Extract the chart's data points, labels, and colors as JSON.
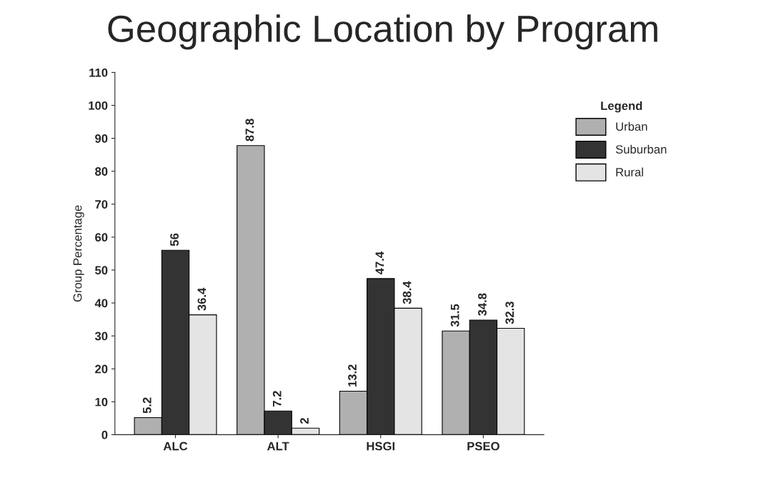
{
  "chart_data": {
    "type": "bar",
    "title": "Geographic Location by Program",
    "ylabel": "Group Percentage",
    "categories": [
      "ALC",
      "ALT",
      "HSGI",
      "PSEO"
    ],
    "series": [
      {
        "name": "Urban",
        "color": "#b0b0b0",
        "values": [
          5.2,
          87.8,
          13.2,
          31.5
        ]
      },
      {
        "name": "Suburban",
        "color": "#333333",
        "values": [
          56,
          7.2,
          47.4,
          34.8
        ]
      },
      {
        "name": "Rural",
        "color": "#e4e4e4",
        "values": [
          36.4,
          2,
          38.4,
          32.3
        ]
      }
    ],
    "ylim": [
      0,
      110
    ],
    "yticks": [
      0,
      10,
      20,
      30,
      40,
      50,
      60,
      70,
      80,
      90,
      100,
      110
    ],
    "data_labels": true,
    "legend": "right",
    "legend_title": "Legend",
    "grid": false
  }
}
